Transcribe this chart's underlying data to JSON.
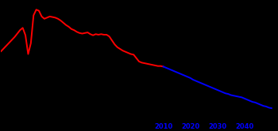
{
  "background_color": "#000000",
  "line_color_historical": "#ff0000",
  "line_color_projected": "#0000ff",
  "tick_label_color": "#0000ff",
  "tick_years": [
    2010,
    2020,
    2030,
    2040
  ],
  "historical_data": [
    [
      1950,
      1.47
    ],
    [
      1951,
      1.52
    ],
    [
      1952,
      1.57
    ],
    [
      1953,
      1.62
    ],
    [
      1954,
      1.67
    ],
    [
      1955,
      1.72
    ],
    [
      1956,
      1.78
    ],
    [
      1957,
      1.84
    ],
    [
      1958,
      1.88
    ],
    [
      1959,
      1.75
    ],
    [
      1960,
      1.42
    ],
    [
      1961,
      1.61
    ],
    [
      1962,
      2.1
    ],
    [
      1963,
      2.2
    ],
    [
      1964,
      2.18
    ],
    [
      1965,
      2.08
    ],
    [
      1966,
      2.04
    ],
    [
      1967,
      2.06
    ],
    [
      1968,
      2.08
    ],
    [
      1969,
      2.07
    ],
    [
      1970,
      2.06
    ],
    [
      1971,
      2.04
    ],
    [
      1972,
      2.01
    ],
    [
      1973,
      1.97
    ],
    [
      1974,
      1.93
    ],
    [
      1975,
      1.9
    ],
    [
      1976,
      1.86
    ],
    [
      1977,
      1.84
    ],
    [
      1978,
      1.81
    ],
    [
      1979,
      1.79
    ],
    [
      1980,
      1.78
    ],
    [
      1981,
      1.79
    ],
    [
      1982,
      1.8
    ],
    [
      1983,
      1.77
    ],
    [
      1984,
      1.75
    ],
    [
      1985,
      1.77
    ],
    [
      1986,
      1.76
    ],
    [
      1987,
      1.77
    ],
    [
      1988,
      1.76
    ],
    [
      1989,
      1.76
    ],
    [
      1990,
      1.73
    ],
    [
      1991,
      1.66
    ],
    [
      1992,
      1.59
    ],
    [
      1993,
      1.54
    ],
    [
      1994,
      1.51
    ],
    [
      1995,
      1.48
    ],
    [
      1996,
      1.46
    ],
    [
      1997,
      1.44
    ],
    [
      1998,
      1.42
    ],
    [
      1999,
      1.41
    ],
    [
      2000,
      1.35
    ],
    [
      2001,
      1.29
    ],
    [
      2002,
      1.27
    ],
    [
      2003,
      1.26
    ],
    [
      2004,
      1.25
    ],
    [
      2005,
      1.24
    ],
    [
      2006,
      1.23
    ],
    [
      2007,
      1.22
    ],
    [
      2008,
      1.21
    ],
    [
      2009,
      1.21
    ],
    [
      2010,
      1.2
    ]
  ],
  "projected_data": [
    [
      2010,
      1.2
    ],
    [
      2011,
      1.18
    ],
    [
      2012,
      1.16
    ],
    [
      2013,
      1.14
    ],
    [
      2014,
      1.12
    ],
    [
      2015,
      1.1
    ],
    [
      2016,
      1.08
    ],
    [
      2017,
      1.06
    ],
    [
      2018,
      1.04
    ],
    [
      2019,
      1.02
    ],
    [
      2020,
      1.0
    ],
    [
      2021,
      0.97
    ],
    [
      2022,
      0.95
    ],
    [
      2023,
      0.93
    ],
    [
      2024,
      0.91
    ],
    [
      2025,
      0.89
    ],
    [
      2026,
      0.87
    ],
    [
      2027,
      0.85
    ],
    [
      2028,
      0.83
    ],
    [
      2029,
      0.81
    ],
    [
      2030,
      0.79
    ],
    [
      2031,
      0.77
    ],
    [
      2032,
      0.75
    ],
    [
      2033,
      0.73
    ],
    [
      2034,
      0.72
    ],
    [
      2035,
      0.7
    ],
    [
      2036,
      0.69
    ],
    [
      2037,
      0.68
    ],
    [
      2038,
      0.67
    ],
    [
      2039,
      0.66
    ],
    [
      2040,
      0.64
    ],
    [
      2041,
      0.62
    ],
    [
      2042,
      0.6
    ],
    [
      2043,
      0.58
    ],
    [
      2044,
      0.57
    ],
    [
      2045,
      0.55
    ],
    [
      2046,
      0.53
    ],
    [
      2047,
      0.51
    ],
    [
      2048,
      0.5
    ],
    [
      2049,
      0.48
    ],
    [
      2050,
      0.47
    ]
  ],
  "xlim": [
    1950,
    2052
  ],
  "ylim": [
    0.3,
    2.35
  ],
  "linewidth": 1.4
}
